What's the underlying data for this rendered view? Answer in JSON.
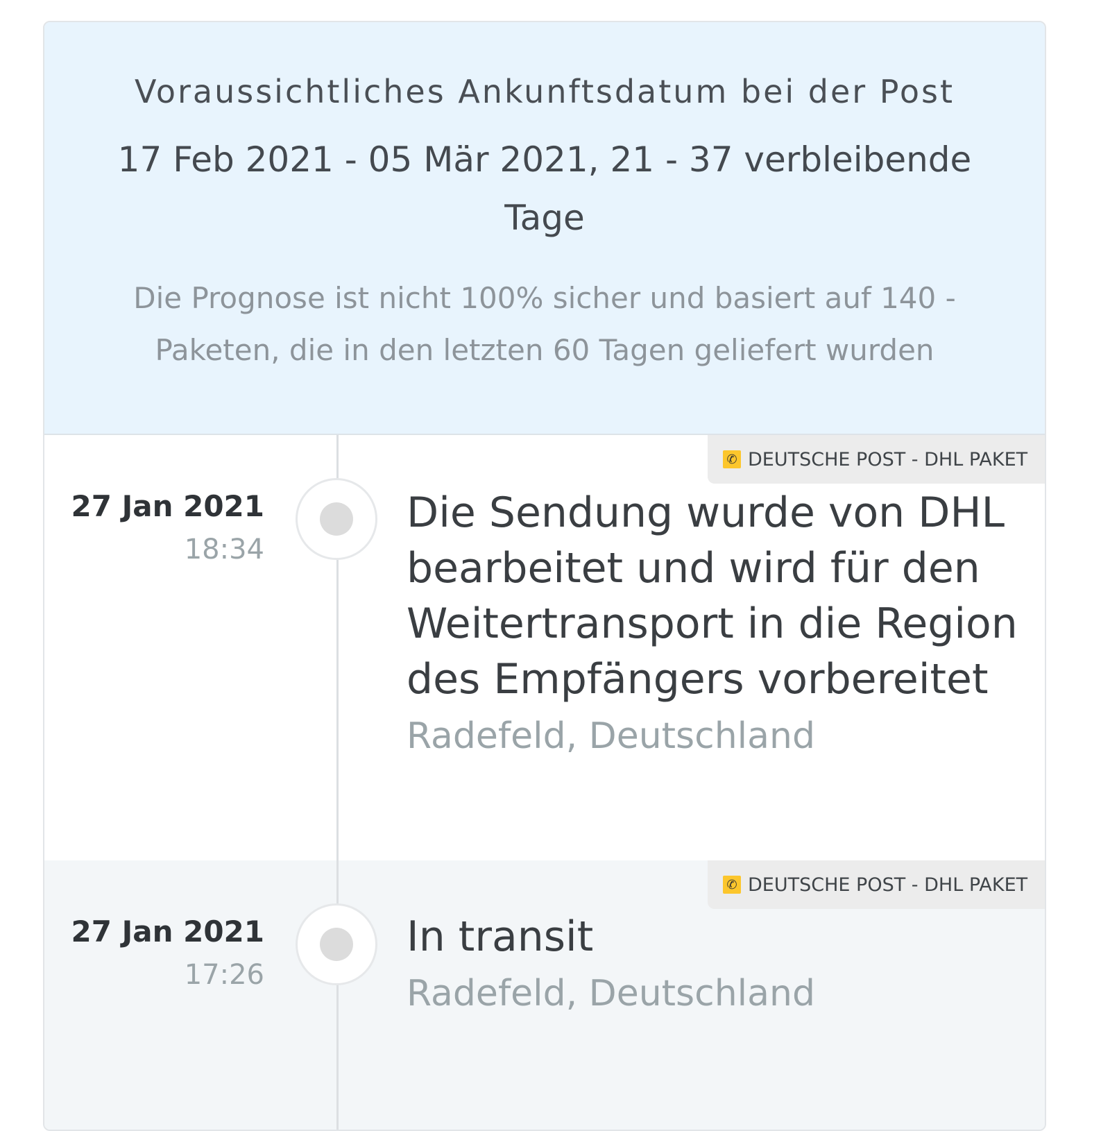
{
  "estimate": {
    "title": "Voraussichtliches Ankunftsdatum bei der Post",
    "range": "17 Feb 2021 - 05 Mär 2021, 21 - 37 verbleibende Tage",
    "note": "Die Prognose ist nicht 100% sicher und basiert auf 140 - Paketen, die in den letzten 60 Tagen geliefert wurden"
  },
  "events": [
    {
      "date": "27 Jan 2021",
      "time": "18:34",
      "carrier": "DEUTSCHE POST - DHL PAKET",
      "carrier_icon": "deutsche-post-horn-icon",
      "message": "Die Sendung wurde von DHL bearbeitet und wird für den Weitertransport in die Region des Empfängers vorbereitet",
      "location": "Radefeld, Deutschland"
    },
    {
      "date": "27 Jan 2021",
      "time": "17:26",
      "carrier": "DEUTSCHE POST - DHL PAKET",
      "carrier_icon": "deutsche-post-horn-icon",
      "message": "In transit",
      "location": "Radefeld, Deutschland"
    }
  ],
  "colors": {
    "header_bg": "#e8f4fd",
    "carrier_logo": "#fcc62c",
    "alt_row_bg": "#f3f6f8"
  }
}
